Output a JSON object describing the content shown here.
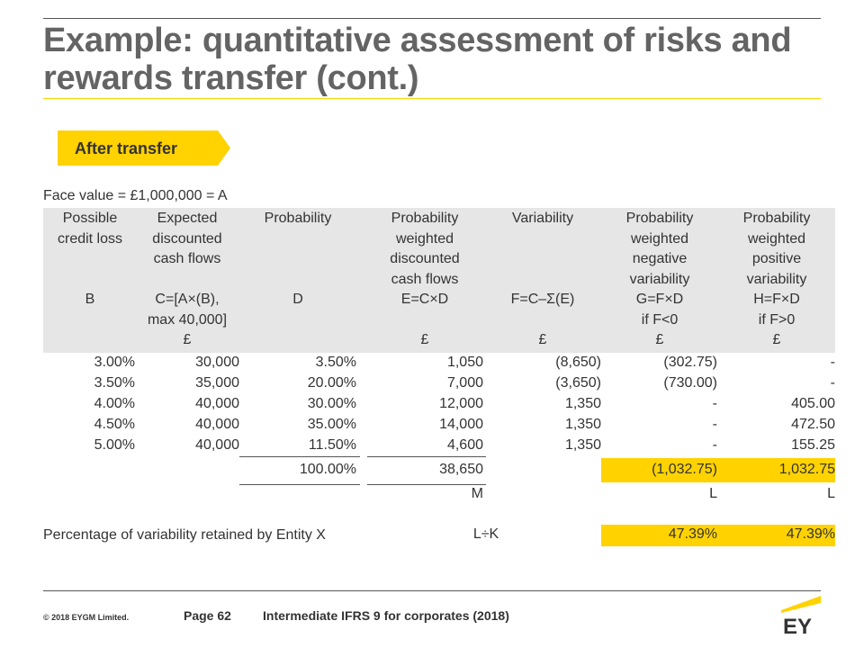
{
  "title": "Example: quantitative assessment of risks and rewards transfer (cont.)",
  "tag": "After transfer",
  "face_value": "Face value = £1,000,000 = A",
  "headers": [
    [
      "Possible",
      "credit loss",
      "",
      "",
      "B",
      "",
      ""
    ],
    [
      "Expected",
      "discounted",
      "cash flows",
      "",
      "C=[A×(B),",
      "max 40,000]",
      "£"
    ],
    [
      "Probability",
      "",
      "",
      "",
      "D",
      "",
      ""
    ],
    [
      "Probability",
      "weighted",
      "discounted",
      "cash flows",
      "E=C×D",
      "",
      "£"
    ],
    [
      "Variability",
      "",
      "",
      "",
      "F=C–Σ(E)",
      "",
      "£"
    ],
    [
      "Probability",
      "weighted",
      "negative",
      "variability",
      "G=F×D",
      "if F<0",
      "£"
    ],
    [
      "Probability",
      "weighted",
      "positive",
      "variability",
      "H=F×D",
      "if F>0",
      "£"
    ]
  ],
  "rows": [
    [
      "3.00%",
      "30,000",
      "3.50%",
      "1,050",
      "(8,650)",
      "(302.75)",
      "-"
    ],
    [
      "3.50%",
      "35,000",
      "20.00%",
      "7,000",
      "(3,650)",
      "(730.00)",
      "-"
    ],
    [
      "4.00%",
      "40,000",
      "30.00%",
      "12,000",
      "1,350",
      "-",
      "405.00"
    ],
    [
      "4.50%",
      "40,000",
      "35.00%",
      "14,000",
      "1,350",
      "-",
      "472.50"
    ],
    [
      "5.00%",
      "40,000",
      "11.50%",
      "4,600",
      "1,350",
      "-",
      "155.25"
    ]
  ],
  "totals": {
    "probability": "100.00%",
    "weighted_cf": "38,650",
    "negative": "(1,032.75)",
    "positive": "1,032.75"
  },
  "labels": {
    "weighted_cf": "M",
    "negative": "L",
    "positive": "L"
  },
  "percentage": {
    "label": "Percentage of variability retained by Entity X",
    "formula": "L÷K",
    "negative": "47.39%",
    "positive": "47.39%"
  },
  "footer": {
    "copyright": "© 2018 EYGM Limited.",
    "page": "Page 62",
    "course": "Intermediate IFRS 9 for corporates (2018)",
    "logo": "EY"
  },
  "colors": {
    "accent": "#ffd200",
    "title": "#646464",
    "header_bg": "#e6e6e6"
  }
}
